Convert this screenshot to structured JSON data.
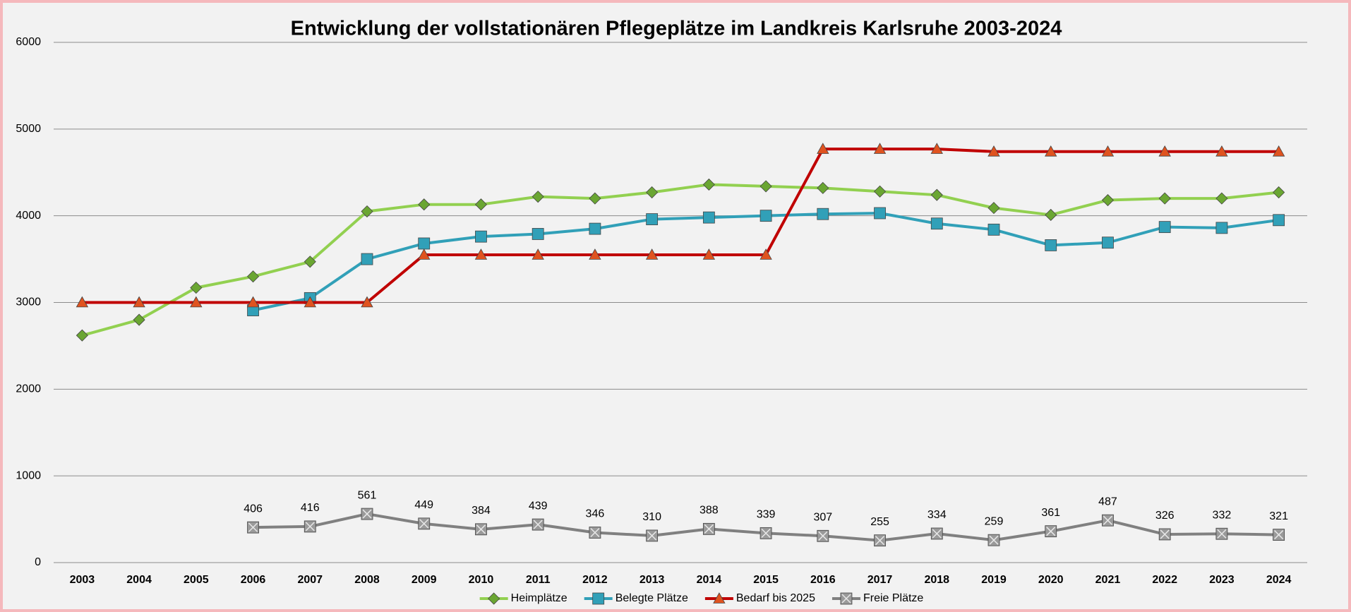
{
  "chart_data": {
    "type": "line",
    "title": "Entwicklung der vollstationären Pflegeplätze im Landkreis Karlsruhe 2003-2024",
    "categories": [
      "2003",
      "2004",
      "2005",
      "2006",
      "2007",
      "2008",
      "2009",
      "2010",
      "2011",
      "2012",
      "2013",
      "2014",
      "2015",
      "2016",
      "2017",
      "2018",
      "2019",
      "2020",
      "2021",
      "2022",
      "2023",
      "2024"
    ],
    "ylim": [
      0,
      6000
    ],
    "yticks": [
      0,
      1000,
      2000,
      3000,
      4000,
      5000,
      6000
    ],
    "grid": true,
    "legend": "bottom",
    "series": [
      {
        "name": "Heimplätze",
        "color": "#92d050",
        "marker": "diamond",
        "markerColor": "#6aa632",
        "values": [
          2620,
          2800,
          3170,
          3300,
          3470,
          4050,
          4130,
          4130,
          4220,
          4200,
          4270,
          4360,
          4340,
          4320,
          4280,
          4240,
          4090,
          4010,
          4180,
          4200,
          4200,
          4270
        ]
      },
      {
        "name": "Belegte Plätze",
        "color": "#31a0b8",
        "marker": "square",
        "markerColor": "#31a0b8",
        "values": [
          null,
          null,
          null,
          2910,
          3050,
          3500,
          3680,
          3760,
          3790,
          3850,
          3960,
          3980,
          4000,
          4020,
          4030,
          3910,
          3840,
          3660,
          3690,
          3870,
          3860,
          3950
        ]
      },
      {
        "name": "Bedarf bis 2025",
        "color": "#c00000",
        "marker": "triangle",
        "markerColor": "#e0531f",
        "values": [
          3000,
          3000,
          3000,
          3000,
          3000,
          3000,
          3550,
          3550,
          3550,
          3550,
          3550,
          3550,
          3550,
          4770,
          4770,
          4770,
          4740,
          4740,
          4740,
          4740,
          4740,
          4740
        ]
      },
      {
        "name": "Freie Plätze",
        "color": "#808080",
        "marker": "xsquare",
        "markerColor": "#9a9a9a",
        "labels": true,
        "values": [
          null,
          null,
          null,
          406,
          416,
          561,
          449,
          384,
          439,
          346,
          310,
          388,
          339,
          307,
          255,
          334,
          259,
          361,
          487,
          326,
          332,
          321
        ]
      }
    ]
  }
}
